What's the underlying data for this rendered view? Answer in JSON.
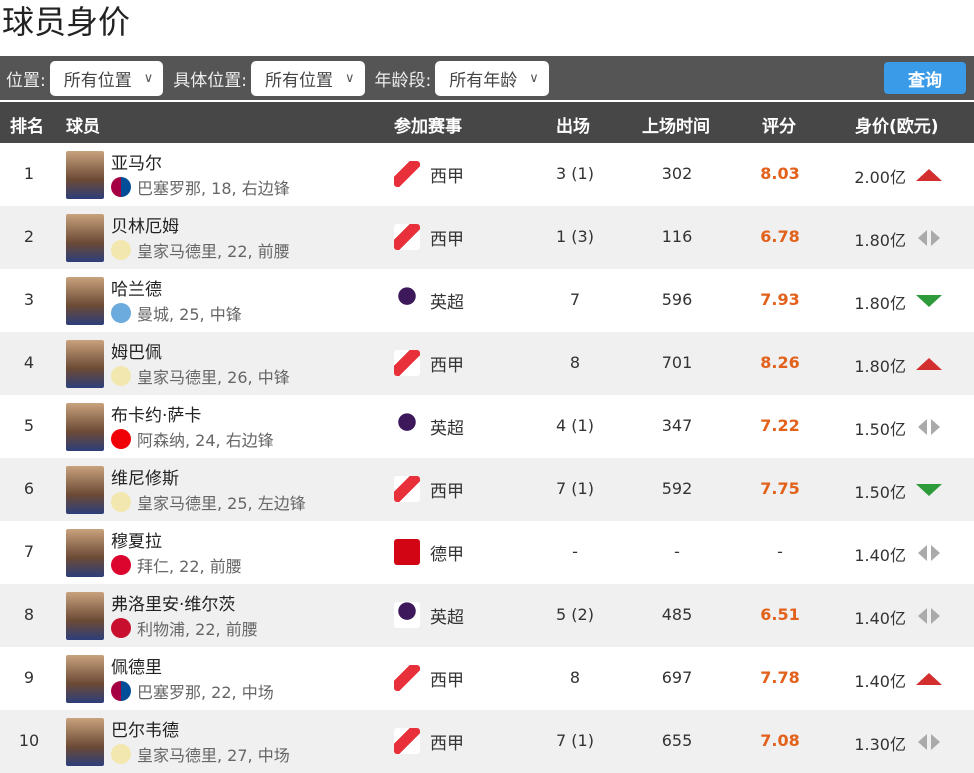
{
  "title": "球员身价",
  "filters": [
    {
      "label": "位置:",
      "value": "所有位置"
    },
    {
      "label": "具体位置:",
      "value": "所有位置"
    },
    {
      "label": "年龄段:",
      "value": "所有年龄"
    }
  ],
  "query_label": "查询",
  "columns": [
    "排名",
    "球员",
    "参加赛事",
    "出场",
    "上场时间",
    "评分",
    "身价(欧元)"
  ],
  "colors": {
    "rating": "#e2621b",
    "up": "#d32f2f",
    "down": "#2e9b3a",
    "flat": "#aaaaaa",
    "toolbar": "#555555",
    "query": "#3a9be8"
  },
  "rows": [
    {
      "rank": "1",
      "name": "亚马尔",
      "info": "巴塞罗那, 18, 右边锋",
      "club": "barcelona",
      "league": "西甲",
      "league_icon": "laliga",
      "apps": "3 (1)",
      "minutes": "302",
      "rating": "8.03",
      "value": "2.00亿",
      "trend": "up"
    },
    {
      "rank": "2",
      "name": "贝林厄姆",
      "info": "皇家马德里, 22, 前腰",
      "club": "real-madrid",
      "league": "西甲",
      "league_icon": "laliga",
      "apps": "1 (3)",
      "minutes": "116",
      "rating": "6.78",
      "value": "1.80亿",
      "trend": "flat"
    },
    {
      "rank": "3",
      "name": "哈兰德",
      "info": "曼城, 25, 中锋",
      "club": "man-city",
      "league": "英超",
      "league_icon": "premier-league",
      "apps": "7",
      "minutes": "596",
      "rating": "7.93",
      "value": "1.80亿",
      "trend": "down"
    },
    {
      "rank": "4",
      "name": "姆巴佩",
      "info": "皇家马德里, 26, 中锋",
      "club": "real-madrid",
      "league": "西甲",
      "league_icon": "laliga",
      "apps": "8",
      "minutes": "701",
      "rating": "8.26",
      "value": "1.80亿",
      "trend": "up"
    },
    {
      "rank": "5",
      "name": "布卡约·萨卡",
      "info": "阿森纳, 24, 右边锋",
      "club": "arsenal",
      "league": "英超",
      "league_icon": "premier-league",
      "apps": "4 (1)",
      "minutes": "347",
      "rating": "7.22",
      "value": "1.50亿",
      "trend": "flat"
    },
    {
      "rank": "6",
      "name": "维尼修斯",
      "info": "皇家马德里, 25, 左边锋",
      "club": "real-madrid",
      "league": "西甲",
      "league_icon": "laliga",
      "apps": "7 (1)",
      "minutes": "592",
      "rating": "7.75",
      "value": "1.50亿",
      "trend": "down"
    },
    {
      "rank": "7",
      "name": "穆夏拉",
      "info": "拜仁, 22, 前腰",
      "club": "bayern",
      "league": "德甲",
      "league_icon": "bundesliga",
      "apps": "-",
      "minutes": "-",
      "rating": "-",
      "value": "1.40亿",
      "trend": "flat"
    },
    {
      "rank": "8",
      "name": "弗洛里安·维尔茨",
      "info": "利物浦, 22, 前腰",
      "club": "liverpool",
      "league": "英超",
      "league_icon": "premier-league",
      "apps": "5 (2)",
      "minutes": "485",
      "rating": "6.51",
      "value": "1.40亿",
      "trend": "flat"
    },
    {
      "rank": "9",
      "name": "佩德里",
      "info": "巴塞罗那, 22, 中场",
      "club": "barcelona",
      "league": "西甲",
      "league_icon": "laliga",
      "apps": "8",
      "minutes": "697",
      "rating": "7.78",
      "value": "1.40亿",
      "trend": "up"
    },
    {
      "rank": "10",
      "name": "巴尔韦德",
      "info": "皇家马德里, 27, 中场",
      "club": "real-madrid",
      "league": "西甲",
      "league_icon": "laliga",
      "apps": "7 (1)",
      "minutes": "655",
      "rating": "7.08",
      "value": "1.30亿",
      "trend": "flat"
    }
  ]
}
